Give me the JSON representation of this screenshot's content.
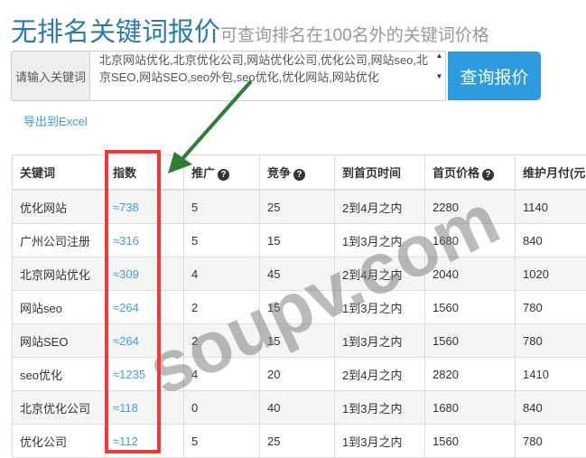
{
  "title": {
    "main": "无排名关键词报价",
    "sub": "可查询排名在100名外的关键词价格"
  },
  "form": {
    "label": "请输入关键词",
    "textarea_value": "北京网站优化,北京优化公司,网站优化公司,优化公司,网站seo,北京SEO,网站SEO,seo外包,seo优化,优化网站,网站优化",
    "submit": "查询报价"
  },
  "export": "导出到Excel",
  "table": {
    "headers": [
      "关键词",
      "指数",
      "推广",
      "竞争",
      "到首页时间",
      "首页价格",
      "维护月付(元"
    ],
    "rows": [
      [
        "优化网站",
        "≈738",
        "5",
        "25",
        "2到4月之内",
        "2280",
        "1140"
      ],
      [
        "广州公司注册",
        "≈316",
        "5",
        "15",
        "1到3月之内",
        "1680",
        "840"
      ],
      [
        "北京网站优化",
        "≈309",
        "4",
        "45",
        "2到4月之内",
        "2040",
        "1020"
      ],
      [
        "网站seo",
        "≈264",
        "2",
        "15",
        "1到3月之内",
        "1560",
        "780"
      ],
      [
        "网站SEO",
        "≈264",
        "2",
        "15",
        "1到3月之内",
        "1560",
        "780"
      ],
      [
        "seo优化",
        "≈1235",
        "4",
        "20",
        "2到4月之内",
        "2820",
        "1410"
      ],
      [
        "北京优化公司",
        "≈118",
        "0",
        "40",
        "1到3月之内",
        "1680",
        "840"
      ],
      [
        "优化公司",
        "≈112",
        "5",
        "25",
        "1到3月之内",
        "1560",
        "780"
      ]
    ]
  },
  "watermark": "soupv.com",
  "colors": {
    "accent": "#2d9be0",
    "highlight_box": "#f03a3a",
    "arrow": "#2e7d32"
  }
}
